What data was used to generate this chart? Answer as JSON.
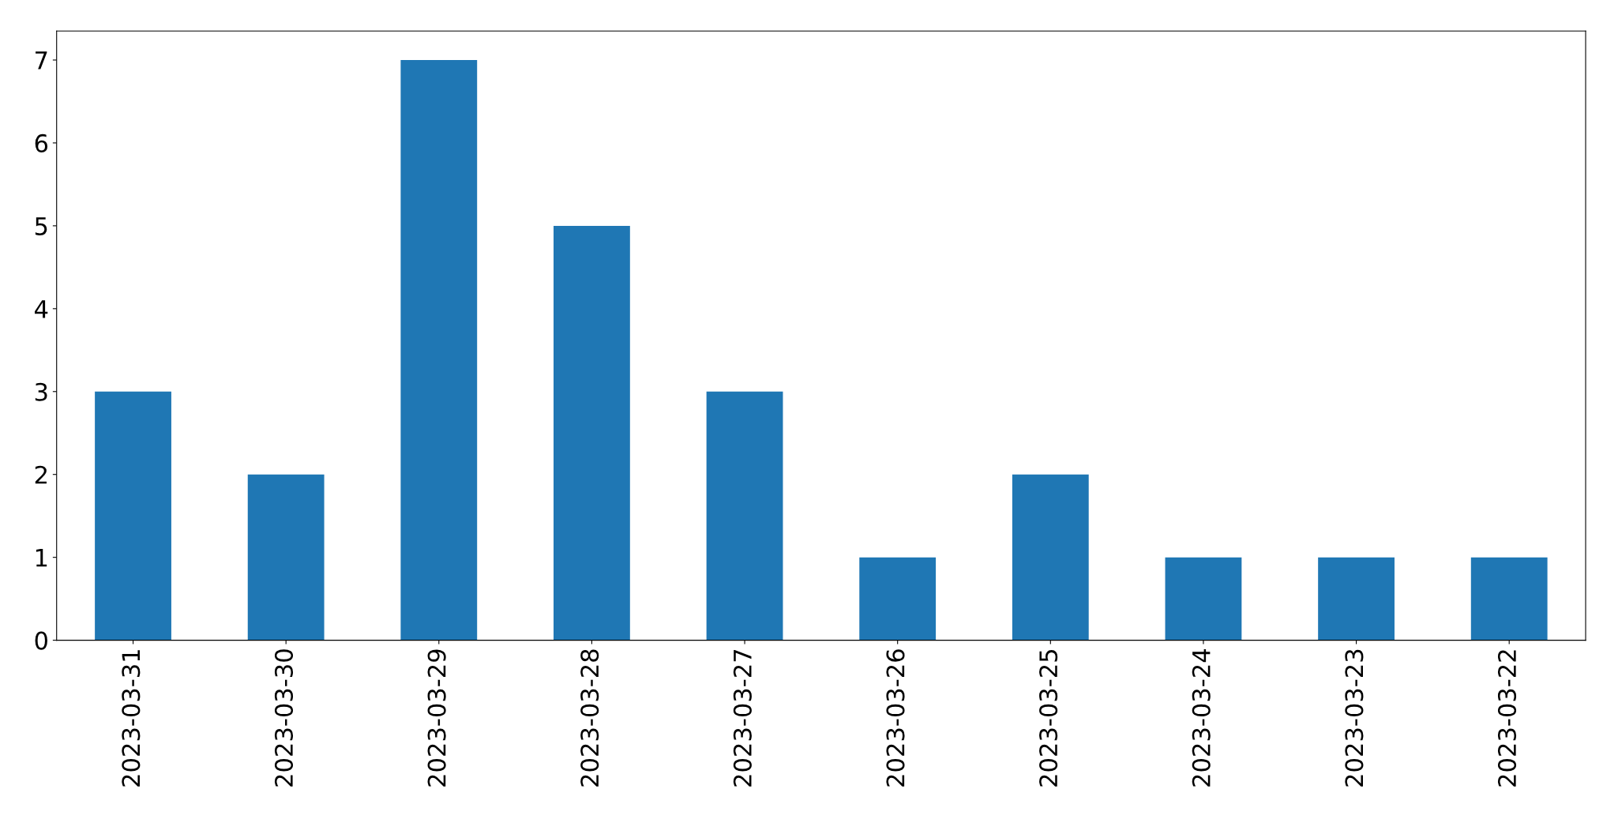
{
  "chart_data": {
    "type": "bar",
    "categories": [
      "2023-03-31",
      "2023-03-30",
      "2023-03-29",
      "2023-03-28",
      "2023-03-27",
      "2023-03-26",
      "2023-03-25",
      "2023-03-24",
      "2023-03-23",
      "2023-03-22"
    ],
    "values": [
      3,
      2,
      7,
      5,
      3,
      1,
      2,
      1,
      1,
      1
    ],
    "color": "#1f77b4",
    "ylim": [
      0,
      7.35
    ],
    "yticks": [
      0,
      1,
      2,
      3,
      4,
      5,
      6,
      7
    ],
    "grid": false,
    "legend": false
  }
}
